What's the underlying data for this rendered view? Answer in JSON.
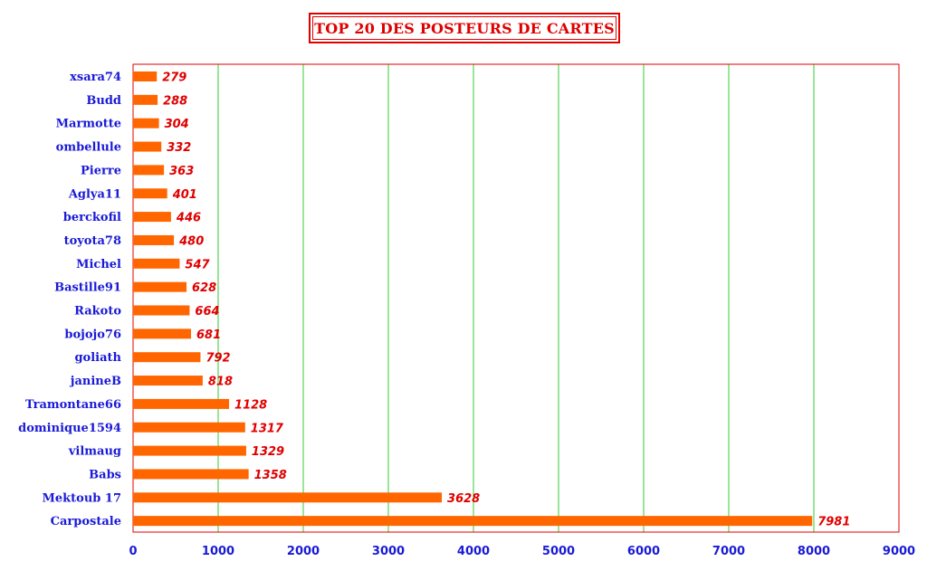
{
  "chart_data": {
    "type": "bar",
    "orientation": "horizontal",
    "title": "TOP 20 DES POSTEURS DE CARTES",
    "xlabel": "",
    "ylabel": "",
    "categories": [
      "xsara74",
      "Budd",
      "Marmotte",
      "ombellule",
      "Pierre",
      "Aglya11",
      "berckofil",
      "toyota78",
      "Michel",
      "Bastille91",
      "Rakoto",
      "bojojo76",
      "goliath",
      "janineB",
      "Tramontane66",
      "dominique1594",
      "vilmaug",
      "Babs",
      "Mektoub 17",
      "Carpostale"
    ],
    "values": [
      279,
      288,
      304,
      332,
      363,
      401,
      446,
      480,
      547,
      628,
      664,
      681,
      792,
      818,
      1128,
      1317,
      1329,
      1358,
      3628,
      7981
    ],
    "xlim": [
      0,
      9000
    ],
    "xticks": [
      0,
      1000,
      2000,
      3000,
      4000,
      5000,
      6000,
      7000,
      8000,
      9000
    ],
    "grid": "vertical",
    "legend": "none",
    "colors": {
      "bar": "#ff6600",
      "grid": "#33cc33",
      "frame": "#e00000",
      "title": "#e00000",
      "category_label": "#1a1ad6",
      "data_label": "#e00000"
    }
  }
}
